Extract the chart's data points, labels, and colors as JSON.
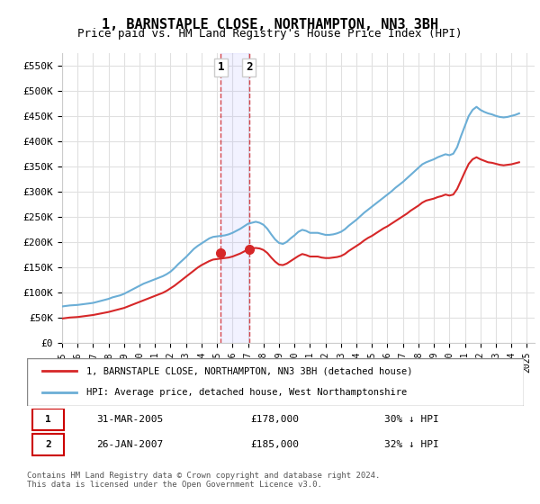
{
  "title": "1, BARNSTAPLE CLOSE, NORTHAMPTON, NN3 3BH",
  "subtitle": "Price paid vs. HM Land Registry's House Price Index (HPI)",
  "legend_line1": "1, BARNSTAPLE CLOSE, NORTHAMPTON, NN3 3BH (detached house)",
  "legend_line2": "HPI: Average price, detached house, West Northamptonshire",
  "table_row1_num": "1",
  "table_row1_date": "31-MAR-2005",
  "table_row1_price": "£178,000",
  "table_row1_hpi": "30% ↓ HPI",
  "table_row2_num": "2",
  "table_row2_date": "26-JAN-2007",
  "table_row2_price": "£185,000",
  "table_row2_hpi": "32% ↓ HPI",
  "footer": "Contains HM Land Registry data © Crown copyright and database right 2024.\nThis data is licensed under the Open Government Licence v3.0.",
  "sale1_x": 2005.25,
  "sale1_y": 178000,
  "sale2_x": 2007.07,
  "sale2_y": 185000,
  "hpi_color": "#6baed6",
  "price_color": "#d62728",
  "sale_marker_color": "#d62728",
  "background_color": "#ffffff",
  "grid_color": "#e0e0e0",
  "ylim": [
    0,
    575000
  ],
  "xlim_start": 1995.0,
  "xlim_end": 2025.5,
  "yticks": [
    0,
    50000,
    100000,
    150000,
    200000,
    250000,
    300000,
    350000,
    400000,
    450000,
    500000,
    550000
  ],
  "ytick_labels": [
    "£0",
    "£50K",
    "£100K",
    "£150K",
    "£200K",
    "£250K",
    "£300K",
    "£350K",
    "£400K",
    "£450K",
    "£500K",
    "£550K"
  ],
  "xtick_years": [
    1995,
    1996,
    1997,
    1998,
    1999,
    2000,
    2001,
    2002,
    2003,
    2004,
    2005,
    2006,
    2007,
    2008,
    2009,
    2010,
    2011,
    2012,
    2013,
    2014,
    2015,
    2016,
    2017,
    2018,
    2019,
    2020,
    2021,
    2022,
    2023,
    2024,
    2025
  ],
  "hpi_x": [
    1995.0,
    1995.25,
    1995.5,
    1995.75,
    1996.0,
    1996.25,
    1996.5,
    1996.75,
    1997.0,
    1997.25,
    1997.5,
    1997.75,
    1998.0,
    1998.25,
    1998.5,
    1998.75,
    1999.0,
    1999.25,
    1999.5,
    1999.75,
    2000.0,
    2000.25,
    2000.5,
    2000.75,
    2001.0,
    2001.25,
    2001.5,
    2001.75,
    2002.0,
    2002.25,
    2002.5,
    2002.75,
    2003.0,
    2003.25,
    2003.5,
    2003.75,
    2004.0,
    2004.25,
    2004.5,
    2004.75,
    2005.0,
    2005.25,
    2005.5,
    2005.75,
    2006.0,
    2006.25,
    2006.5,
    2006.75,
    2007.0,
    2007.25,
    2007.5,
    2007.75,
    2008.0,
    2008.25,
    2008.5,
    2008.75,
    2009.0,
    2009.25,
    2009.5,
    2009.75,
    2010.0,
    2010.25,
    2010.5,
    2010.75,
    2011.0,
    2011.25,
    2011.5,
    2011.75,
    2012.0,
    2012.25,
    2012.5,
    2012.75,
    2013.0,
    2013.25,
    2013.5,
    2013.75,
    2014.0,
    2014.25,
    2014.5,
    2014.75,
    2015.0,
    2015.25,
    2015.5,
    2015.75,
    2016.0,
    2016.25,
    2016.5,
    2016.75,
    2017.0,
    2017.25,
    2017.5,
    2017.75,
    2018.0,
    2018.25,
    2018.5,
    2018.75,
    2019.0,
    2019.25,
    2019.5,
    2019.75,
    2020.0,
    2020.25,
    2020.5,
    2020.75,
    2021.0,
    2021.25,
    2021.5,
    2021.75,
    2022.0,
    2022.25,
    2022.5,
    2022.75,
    2023.0,
    2023.25,
    2023.5,
    2023.75,
    2024.0,
    2024.25,
    2024.5
  ],
  "hpi_y": [
    72000,
    73000,
    74000,
    74500,
    75000,
    76000,
    77000,
    78000,
    79000,
    81000,
    83000,
    85000,
    87000,
    90000,
    92000,
    94000,
    97000,
    101000,
    105000,
    109000,
    113000,
    117000,
    120000,
    123000,
    126000,
    129000,
    132000,
    136000,
    141000,
    148000,
    156000,
    163000,
    170000,
    178000,
    186000,
    192000,
    197000,
    202000,
    207000,
    210000,
    211000,
    212000,
    213000,
    215000,
    218000,
    222000,
    226000,
    231000,
    236000,
    238000,
    240000,
    238000,
    234000,
    226000,
    215000,
    205000,
    198000,
    196000,
    200000,
    207000,
    213000,
    220000,
    224000,
    222000,
    218000,
    218000,
    218000,
    216000,
    214000,
    214000,
    215000,
    217000,
    220000,
    225000,
    232000,
    238000,
    244000,
    251000,
    258000,
    264000,
    270000,
    276000,
    282000,
    288000,
    294000,
    300000,
    307000,
    313000,
    319000,
    326000,
    333000,
    340000,
    347000,
    354000,
    358000,
    361000,
    364000,
    368000,
    371000,
    374000,
    372000,
    375000,
    388000,
    410000,
    430000,
    450000,
    462000,
    468000,
    462000,
    458000,
    455000,
    453000,
    450000,
    448000,
    447000,
    448000,
    450000,
    452000,
    455000
  ],
  "price_x": [
    1995.0,
    1995.25,
    1995.5,
    1995.75,
    1996.0,
    1996.25,
    1996.5,
    1996.75,
    1997.0,
    1997.25,
    1997.5,
    1997.75,
    1998.0,
    1998.25,
    1998.5,
    1998.75,
    1999.0,
    1999.25,
    1999.5,
    1999.75,
    2000.0,
    2000.25,
    2000.5,
    2000.75,
    2001.0,
    2001.25,
    2001.5,
    2001.75,
    2002.0,
    2002.25,
    2002.5,
    2002.75,
    2003.0,
    2003.25,
    2003.5,
    2003.75,
    2004.0,
    2004.25,
    2004.5,
    2004.75,
    2005.0,
    2005.25,
    2005.5,
    2005.75,
    2006.0,
    2006.25,
    2006.5,
    2006.75,
    2007.0,
    2007.25,
    2007.5,
    2007.75,
    2008.0,
    2008.25,
    2008.5,
    2008.75,
    2009.0,
    2009.25,
    2009.5,
    2009.75,
    2010.0,
    2010.25,
    2010.5,
    2010.75,
    2011.0,
    2011.25,
    2011.5,
    2011.75,
    2012.0,
    2012.25,
    2012.5,
    2012.75,
    2013.0,
    2013.25,
    2013.5,
    2013.75,
    2014.0,
    2014.25,
    2014.5,
    2014.75,
    2015.0,
    2015.25,
    2015.5,
    2015.75,
    2016.0,
    2016.25,
    2016.5,
    2016.75,
    2017.0,
    2017.25,
    2017.5,
    2017.75,
    2018.0,
    2018.25,
    2018.5,
    2018.75,
    2019.0,
    2019.25,
    2019.5,
    2019.75,
    2020.0,
    2020.25,
    2020.5,
    2020.75,
    2021.0,
    2021.25,
    2021.5,
    2021.75,
    2022.0,
    2022.25,
    2022.5,
    2022.75,
    2023.0,
    2023.25,
    2023.5,
    2023.75,
    2024.0,
    2024.25,
    2024.5
  ],
  "price_y": [
    48000,
    49000,
    50000,
    50500,
    51000,
    52000,
    53000,
    54000,
    55000,
    56500,
    58000,
    59500,
    61000,
    63000,
    65000,
    67000,
    69000,
    72000,
    75000,
    78000,
    81000,
    84000,
    87000,
    90000,
    93000,
    96000,
    99000,
    103000,
    108000,
    113000,
    119000,
    125000,
    131000,
    137000,
    143000,
    149000,
    154000,
    158000,
    162000,
    165000,
    166000,
    167000,
    168000,
    169000,
    171000,
    174000,
    177000,
    181000,
    185000,
    187000,
    188000,
    187000,
    184000,
    178000,
    169000,
    161000,
    155000,
    154000,
    157000,
    162000,
    167000,
    172000,
    176000,
    174000,
    171000,
    171000,
    171000,
    169000,
    168000,
    168000,
    169000,
    170000,
    172000,
    176000,
    182000,
    187000,
    192000,
    197000,
    203000,
    208000,
    212000,
    217000,
    222000,
    227000,
    231000,
    236000,
    241000,
    246000,
    251000,
    256000,
    262000,
    267000,
    272000,
    278000,
    282000,
    284000,
    286000,
    289000,
    291000,
    294000,
    292000,
    294000,
    305000,
    322000,
    339000,
    355000,
    364000,
    368000,
    364000,
    361000,
    358000,
    357000,
    355000,
    353000,
    352000,
    353000,
    354000,
    356000,
    358000
  ]
}
